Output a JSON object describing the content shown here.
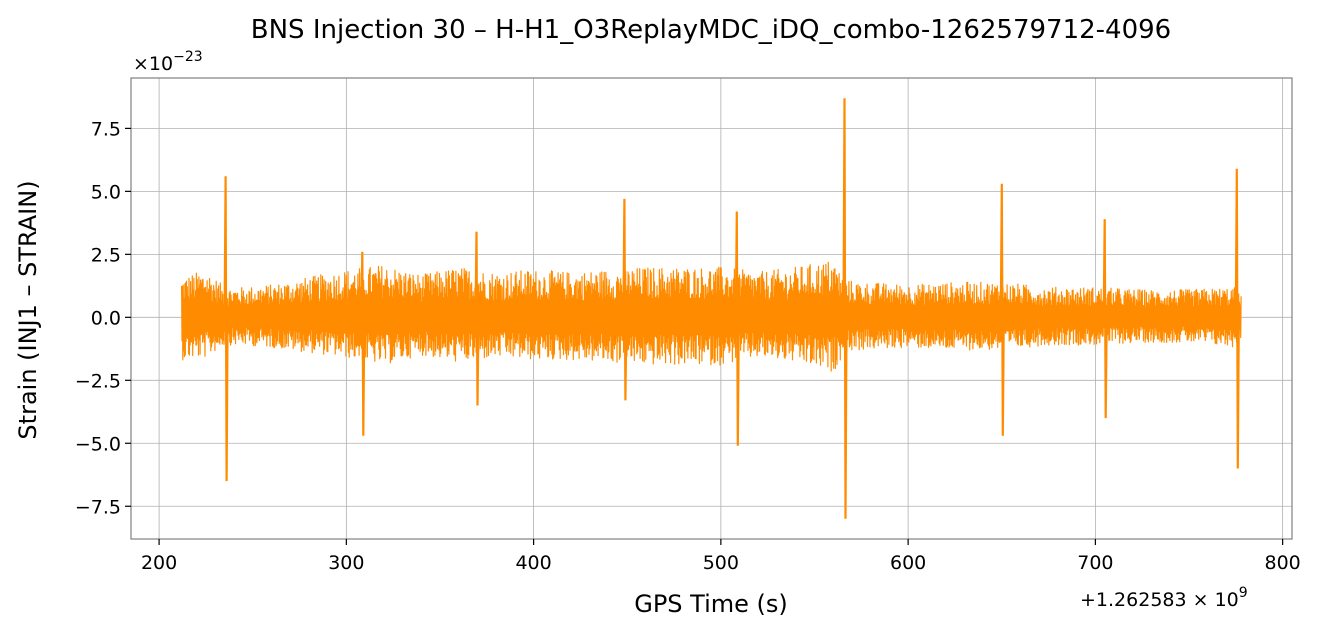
{
  "chart_data": {
    "type": "line",
    "title": "BNS Injection 30 – H-H1_O3ReplayMDC_iDQ_combo-1262579712-4096",
    "xlabel": "GPS Time (s)",
    "ylabel": "Strain (INJ1 – STRAIN)",
    "y_scale_label": "×10",
    "y_scale_exponent": "−23",
    "x_offset_label": "+1.262583 × 10",
    "x_offset_exponent": "9",
    "xlim": [
      185,
      805
    ],
    "ylim": [
      -8.8,
      9.5
    ],
    "x_ticks": [
      200,
      300,
      400,
      500,
      600,
      700,
      800
    ],
    "x_tick_labels": [
      "200",
      "300",
      "400",
      "500",
      "600",
      "700",
      "800"
    ],
    "y_ticks": [
      -7.5,
      -5.0,
      -2.5,
      0.0,
      2.5,
      5.0,
      7.5
    ],
    "y_tick_labels": [
      "−7.5",
      "−5.0",
      "−2.5",
      "0.0",
      "2.5",
      "5.0",
      "7.5"
    ],
    "grid": true,
    "series_color": "#ff8c00",
    "series": [
      {
        "envelope_x": [
          212,
          225,
          235,
          245,
          260,
          280,
          300,
          320,
          340,
          360,
          380,
          400,
          420,
          440,
          460,
          480,
          500,
          520,
          540,
          560,
          566,
          575,
          600,
          625,
          650,
          675,
          700,
          725,
          750,
          775,
          778
        ],
        "envelope_upper": [
          1.6,
          1.9,
          1.2,
          1.2,
          1.3,
          1.6,
          1.9,
          2.1,
          1.7,
          2.0,
          1.8,
          1.9,
          1.8,
          1.9,
          2.0,
          2.0,
          2.0,
          1.8,
          2.0,
          2.3,
          1.5,
          1.4,
          1.3,
          1.4,
          1.4,
          1.2,
          1.2,
          1.1,
          1.1,
          1.2,
          0.9
        ],
        "envelope_lower": [
          -1.7,
          -1.6,
          -1.1,
          -1.1,
          -1.2,
          -1.4,
          -1.6,
          -1.9,
          -1.5,
          -1.8,
          -1.6,
          -1.7,
          -1.7,
          -1.8,
          -1.9,
          -1.9,
          -1.9,
          -1.6,
          -1.8,
          -2.2,
          -1.4,
          -1.3,
          -1.2,
          -1.3,
          -1.3,
          -1.1,
          -1.1,
          -1.0,
          -1.0,
          -1.2,
          -0.9
        ],
        "spikes": [
          {
            "x": 235.5,
            "max": 5.6,
            "min": -6.5
          },
          {
            "x": 308.5,
            "max": 2.6,
            "min": -4.7
          },
          {
            "x": 369.5,
            "max": 3.4,
            "min": -3.5
          },
          {
            "x": 448.5,
            "max": 4.7,
            "min": -3.3
          },
          {
            "x": 508.5,
            "max": 4.2,
            "min": -5.1
          },
          {
            "x": 566.0,
            "max": 8.7,
            "min": -8.0
          },
          {
            "x": 650.0,
            "max": 5.3,
            "min": -4.7
          },
          {
            "x": 705.0,
            "max": 3.9,
            "min": -4.0
          },
          {
            "x": 775.5,
            "max": 5.9,
            "min": -6.0
          }
        ]
      }
    ]
  }
}
